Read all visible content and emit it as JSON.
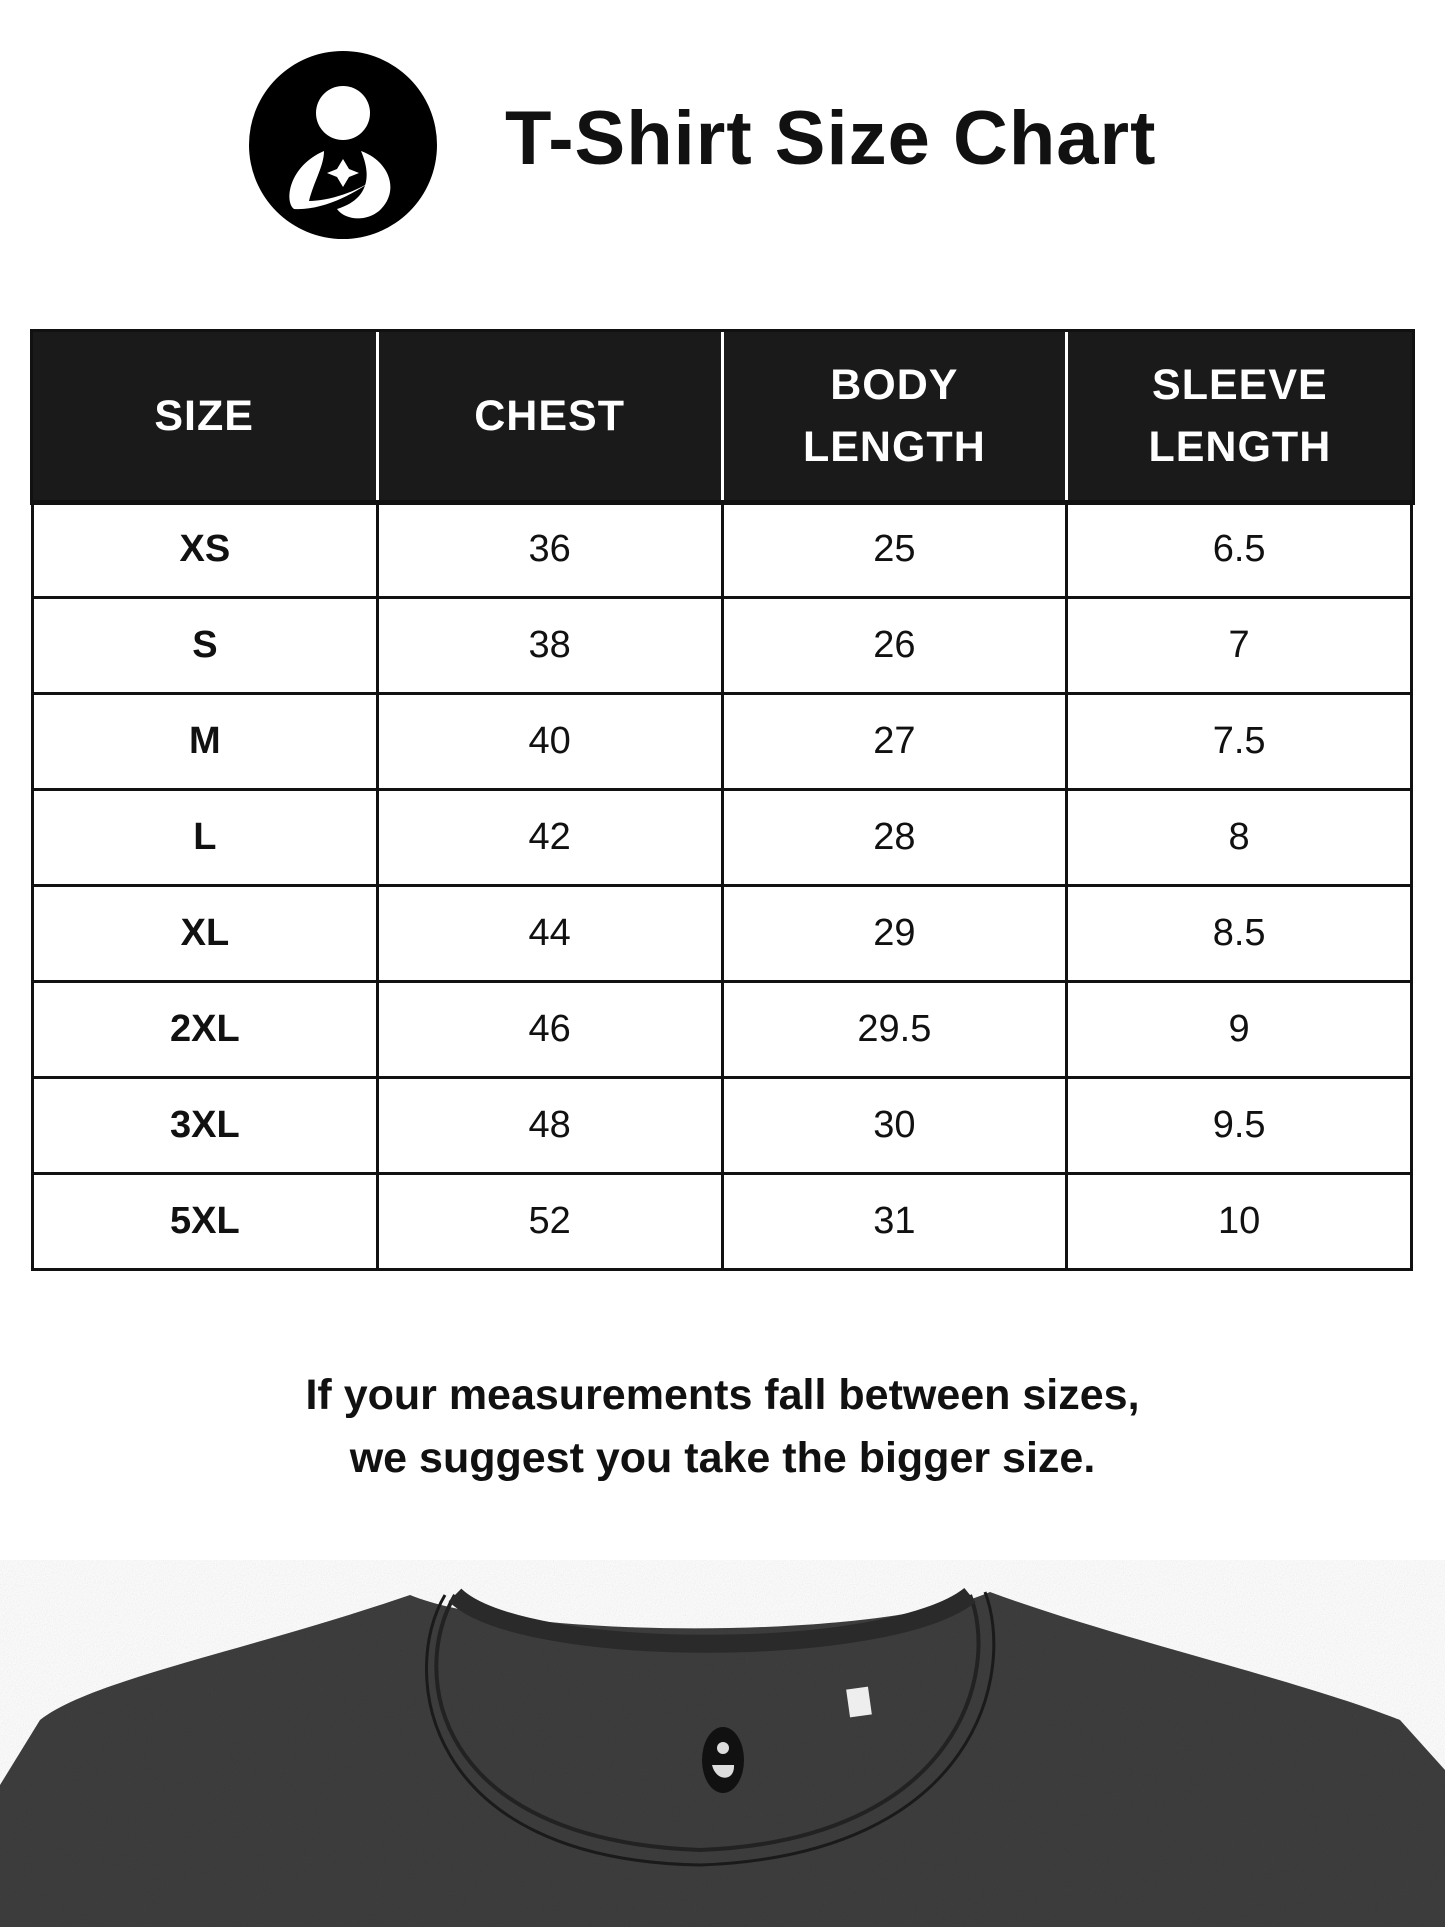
{
  "header": {
    "title": "T-Shirt Size Chart",
    "logo_icon": "mother-and-child-logo-icon"
  },
  "table": {
    "columns": [
      [
        "SIZE"
      ],
      [
        "CHEST"
      ],
      [
        "BODY",
        "LENGTH"
      ],
      [
        "SLEEVE",
        "LENGTH"
      ]
    ],
    "rows": [
      [
        "XS",
        "36",
        "25",
        "6.5"
      ],
      [
        "S",
        "38",
        "26",
        "7"
      ],
      [
        "M",
        "40",
        "27",
        "7.5"
      ],
      [
        "L",
        "42",
        "28",
        "8"
      ],
      [
        "XL",
        "44",
        "29",
        "8.5"
      ],
      [
        "2XL",
        "46",
        "29.5",
        "9"
      ],
      [
        "3XL",
        "48",
        "30",
        "9.5"
      ],
      [
        "5XL",
        "52",
        "31",
        "10"
      ]
    ]
  },
  "note": {
    "line1": "If your measurements fall between sizes,",
    "line2": "we suggest you take the bigger size."
  },
  "colors": {
    "header_bg": "#1a1a1a",
    "shirt": "#3a3a3a"
  }
}
